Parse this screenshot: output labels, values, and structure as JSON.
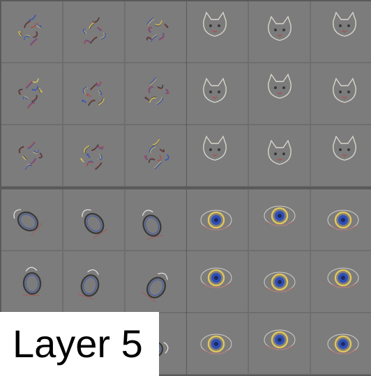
{
  "caption": "Layer 5",
  "groups": [
    {
      "name": "cat-face-patches",
      "cells": [
        "blob",
        "blob",
        "blob",
        "blob",
        "blob",
        "blob",
        "blob",
        "blob",
        "blob"
      ]
    },
    {
      "name": "cat-head-patches",
      "cells": [
        "cat",
        "cat",
        "cat",
        "cat",
        "cat",
        "cat",
        "cat",
        "cat",
        "cat"
      ]
    },
    {
      "name": "ring-loop-patches",
      "cells": [
        "ring",
        "ring",
        "ring",
        "ring",
        "ring",
        "ring",
        "ring",
        "ring",
        "ring"
      ]
    },
    {
      "name": "eye-patches",
      "cells": [
        "eye",
        "eye",
        "eye",
        "eye",
        "eye",
        "eye",
        "eye",
        "eye",
        "eye"
      ]
    }
  ],
  "colors": {
    "background": "#7d7d7d",
    "separator": "#5a5a5a",
    "caption_box": "#ffffff",
    "caption_text": "#000000",
    "feature_blue": "#2f4fb8",
    "feature_yellow": "#e1c65a",
    "feature_red": "#b24a4a",
    "feature_dark": "#3a3a3a"
  }
}
